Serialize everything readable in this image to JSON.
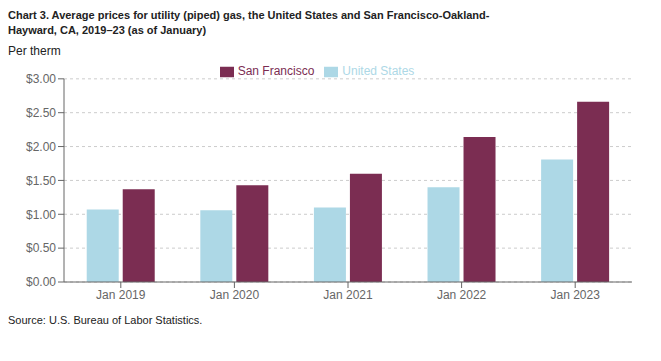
{
  "chart_data": {
    "type": "bar",
    "title": "Chart 3. Average prices for utility (piped) gas, the United States and San Francisco-Oakland-\nHayward, CA, 2019–23 (as of January)",
    "y_label": "Per therm",
    "annotations": [
      "Source: U.S. Bureau of Labor Statistics."
    ],
    "categories": [
      "Jan 2019",
      "Jan 2020",
      "Jan 2021",
      "Jan 2022",
      "Jan 2023"
    ],
    "series": [
      {
        "name": "United States",
        "color": "#add8e6",
        "values": [
          1.07,
          1.06,
          1.1,
          1.4,
          1.81
        ]
      },
      {
        "name": "San Francisco",
        "color": "#7b2d52",
        "values": [
          1.37,
          1.43,
          1.6,
          2.14,
          2.66
        ]
      }
    ],
    "ylim": [
      0,
      3.0
    ],
    "yticks": [
      {
        "value": 0.0,
        "label": "$0.00"
      },
      {
        "value": 0.5,
        "label": "$0.50"
      },
      {
        "value": 1.0,
        "label": "$1.00"
      },
      {
        "value": 1.5,
        "label": "$1.50"
      },
      {
        "value": 2.0,
        "label": "$2.00"
      },
      {
        "value": 2.5,
        "label": "$2.50"
      },
      {
        "value": 3.0,
        "label": "$3.00"
      }
    ],
    "grid": true,
    "legend": "top"
  }
}
